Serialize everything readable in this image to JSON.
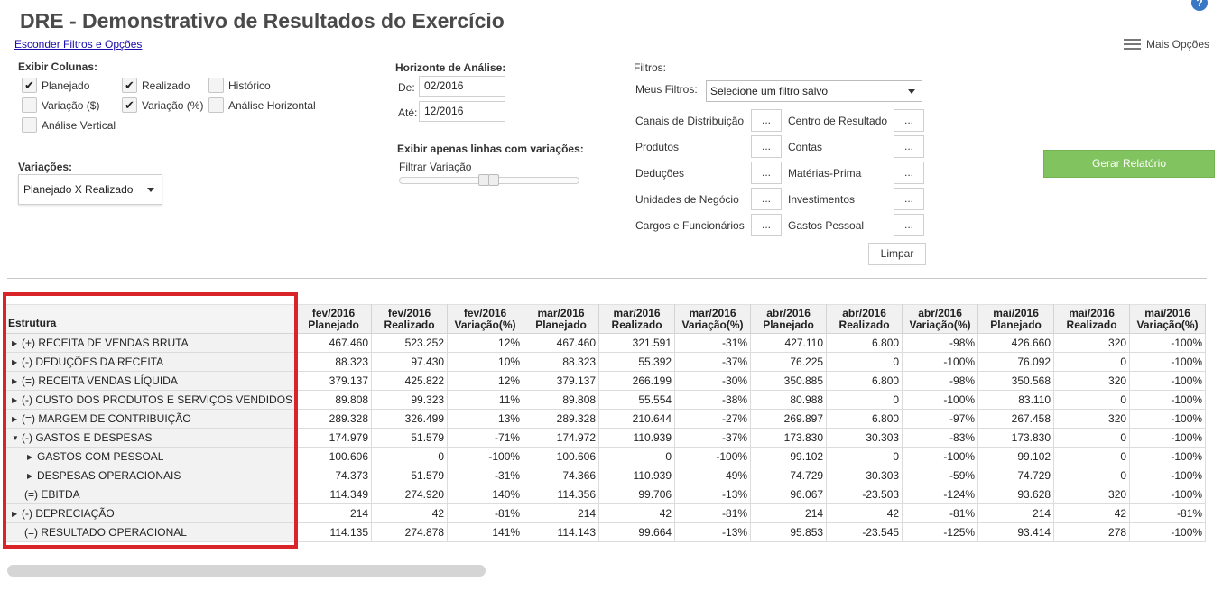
{
  "header": {
    "title": "DRE - Demonstrativo de Resultados do Exercício",
    "hide_filters_link": "Esconder Filtros e Opções",
    "help_icon": "?",
    "more_options": "Mais Opções"
  },
  "columns_panel": {
    "title": "Exibir Colunas:",
    "options": [
      {
        "label": "Planejado",
        "checked": true
      },
      {
        "label": "Realizado",
        "checked": true
      },
      {
        "label": "Histórico",
        "checked": false
      },
      {
        "label": "Variação ($)",
        "checked": false
      },
      {
        "label": "Variação (%)",
        "checked": true
      },
      {
        "label": "Análise Horizontal",
        "checked": false
      },
      {
        "label": "Análise Vertical",
        "checked": false
      }
    ]
  },
  "variations": {
    "title": "Variações:",
    "selected": "Planejado X Realizado"
  },
  "horizon": {
    "title": "Horizonte de Análise:",
    "from_label": "De:",
    "from_value": "02/2016",
    "to_label": "Até:",
    "to_value": "12/2016"
  },
  "variation_filter": {
    "title": "Exibir apenas linhas com variações:",
    "sublabel": "Filtrar Variação"
  },
  "filters": {
    "title": "Filtros:",
    "my_filters_label": "Meus Filtros:",
    "saved_filter_placeholder": "Selecione um filtro salvo",
    "button_text": "...",
    "left": [
      "Canais de Distribuição",
      "Produtos",
      "Deduções",
      "Unidades de Negócio",
      "Cargos e Funcionários"
    ],
    "right": [
      "Centro de Resultado",
      "Contas",
      "Matérias-Prima",
      "Investimentos",
      "Gastos Pessoal"
    ],
    "clear_button": "Limpar"
  },
  "generate_button": "Gerar Relatório",
  "colors": {
    "accent_green": "#80c35f",
    "positive": "#1f8a1f",
    "negative": "#e01010",
    "highlight_frame": "#d9242a"
  },
  "table": {
    "structure_header": "Estrutura",
    "columns": [
      {
        "month": "fev/2016",
        "kind": "Planejado"
      },
      {
        "month": "fev/2016",
        "kind": "Realizado"
      },
      {
        "month": "fev/2016",
        "kind": "Variação(%)"
      },
      {
        "month": "mar/2016",
        "kind": "Planejado"
      },
      {
        "month": "mar/2016",
        "kind": "Realizado"
      },
      {
        "month": "mar/2016",
        "kind": "Variação(%)"
      },
      {
        "month": "abr/2016",
        "kind": "Planejado"
      },
      {
        "month": "abr/2016",
        "kind": "Realizado"
      },
      {
        "month": "abr/2016",
        "kind": "Variação(%)"
      },
      {
        "month": "mai/2016",
        "kind": "Planejado"
      },
      {
        "month": "mai/2016",
        "kind": "Realizado"
      },
      {
        "month": "mai/2016",
        "kind": "Variação(%)"
      }
    ],
    "rows": [
      {
        "label": "(+) RECEITA DE VENDAS BRUTA",
        "arrow": "▶",
        "level": 0,
        "values": [
          "467.460",
          "523.252",
          "12%",
          "467.460",
          "321.591",
          "-31%",
          "427.110",
          "6.800",
          "-98%",
          "426.660",
          "320",
          "-100%"
        ],
        "tones": [
          "",
          "",
          "pos",
          "",
          "",
          "neg",
          "",
          "",
          "neg",
          "",
          "",
          "neg"
        ]
      },
      {
        "label": "(-) DEDUÇÕES DA RECEITA",
        "arrow": "▶",
        "level": 0,
        "values": [
          "88.323",
          "97.430",
          "10%",
          "88.323",
          "55.392",
          "-37%",
          "76.225",
          "0",
          "-100%",
          "76.092",
          "0",
          "-100%"
        ],
        "tones": [
          "",
          "",
          "neg",
          "",
          "",
          "pos",
          "",
          "",
          "pos",
          "",
          "",
          "pos"
        ]
      },
      {
        "label": "(=) RECEITA VENDAS LÍQUIDA",
        "arrow": "▶",
        "level": 0,
        "values": [
          "379.137",
          "425.822",
          "12%",
          "379.137",
          "266.199",
          "-30%",
          "350.885",
          "6.800",
          "-98%",
          "350.568",
          "320",
          "-100%"
        ],
        "tones": [
          "",
          "",
          "pos",
          "",
          "",
          "neg",
          "",
          "",
          "neg",
          "",
          "",
          "neg"
        ]
      },
      {
        "label": "(-) CUSTO DOS PRODUTOS E SERVIÇOS VENDIDOS",
        "arrow": "▶",
        "level": 0,
        "values": [
          "89.808",
          "99.323",
          "11%",
          "89.808",
          "55.554",
          "-38%",
          "80.988",
          "0",
          "-100%",
          "83.110",
          "0",
          "-100%"
        ],
        "tones": [
          "",
          "",
          "neg",
          "",
          "",
          "pos",
          "",
          "",
          "pos",
          "",
          "",
          "pos"
        ]
      },
      {
        "label": "(=) MARGEM DE CONTRIBUIÇÃO",
        "arrow": "▶",
        "level": 0,
        "values": [
          "289.328",
          "326.499",
          "13%",
          "289.328",
          "210.644",
          "-27%",
          "269.897",
          "6.800",
          "-97%",
          "267.458",
          "320",
          "-100%"
        ],
        "tones": [
          "",
          "",
          "pos",
          "",
          "",
          "neg",
          "",
          "",
          "neg",
          "",
          "",
          "neg"
        ]
      },
      {
        "label": "(-) GASTOS E DESPESAS",
        "arrow": "▼",
        "level": 0,
        "values": [
          "174.979",
          "51.579",
          "-71%",
          "174.972",
          "110.939",
          "-37%",
          "173.830",
          "30.303",
          "-83%",
          "173.830",
          "0",
          "-100%"
        ],
        "tones": [
          "",
          "",
          "pos",
          "",
          "",
          "pos",
          "",
          "",
          "pos",
          "",
          "",
          "pos"
        ]
      },
      {
        "label": "GASTOS COM PESSOAL",
        "arrow": "▶",
        "level": 1,
        "values": [
          "100.606",
          "0",
          "-100%",
          "100.606",
          "0",
          "-100%",
          "99.102",
          "0",
          "-100%",
          "99.102",
          "0",
          "-100%"
        ],
        "tones": [
          "",
          "",
          "pos",
          "",
          "",
          "pos",
          "",
          "",
          "pos",
          "",
          "",
          "pos"
        ]
      },
      {
        "label": "DESPESAS OPERACIONAIS",
        "arrow": "▶",
        "level": 1,
        "values": [
          "74.373",
          "51.579",
          "-31%",
          "74.366",
          "110.939",
          "49%",
          "74.729",
          "30.303",
          "-59%",
          "74.729",
          "0",
          "-100%"
        ],
        "tones": [
          "",
          "",
          "pos",
          "",
          "",
          "neg",
          "",
          "",
          "pos",
          "",
          "",
          "pos"
        ]
      },
      {
        "label": "(=) EBITDA",
        "arrow": "",
        "level": 0,
        "values": [
          "114.349",
          "274.920",
          "140%",
          "114.356",
          "99.706",
          "-13%",
          "96.067",
          "-23.503",
          "-124%",
          "93.628",
          "320",
          "-100%"
        ],
        "tones": [
          "",
          "",
          "pos",
          "",
          "",
          "neg",
          "",
          "",
          "neg",
          "",
          "",
          "neg"
        ]
      },
      {
        "label": "(-) DEPRECIAÇÃO",
        "arrow": "▶",
        "level": 0,
        "values": [
          "214",
          "42",
          "-81%",
          "214",
          "42",
          "-81%",
          "214",
          "42",
          "-81%",
          "214",
          "42",
          "-81%"
        ],
        "tones": [
          "",
          "",
          "pos",
          "",
          "",
          "pos",
          "",
          "",
          "pos",
          "",
          "",
          "pos"
        ]
      },
      {
        "label": "(=) RESULTADO OPERACIONAL",
        "arrow": "",
        "level": 0,
        "values": [
          "114.135",
          "274.878",
          "141%",
          "114.143",
          "99.664",
          "-13%",
          "95.853",
          "-23.545",
          "-125%",
          "93.414",
          "278",
          "-100%"
        ],
        "tones": [
          "",
          "",
          "pos",
          "",
          "",
          "neg",
          "",
          "",
          "neg",
          "",
          "",
          "neg"
        ]
      }
    ]
  }
}
